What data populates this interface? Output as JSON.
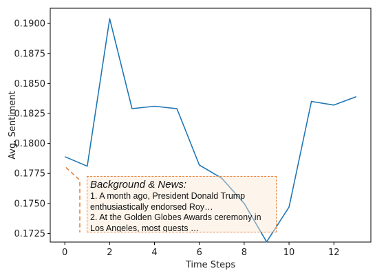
{
  "chart_data": {
    "type": "line",
    "title": "",
    "xlabel": "Time Steps",
    "ylabel": "Avg. Sentiment",
    "xlim": [
      -0.65,
      13.65
    ],
    "ylim": [
      0.17178,
      0.19127
    ],
    "xticks": [
      0,
      2,
      4,
      6,
      8,
      10,
      12
    ],
    "yticks": [
      0.1725,
      0.175,
      0.1775,
      0.18,
      0.1825,
      0.185,
      0.1875,
      0.19
    ],
    "ytick_labels": [
      "0.1725",
      "0.1750",
      "0.1775",
      "0.1800",
      "0.1825",
      "0.1850",
      "0.1875",
      "0.1900"
    ],
    "grid": false,
    "series": [
      {
        "color": "#1F77B4",
        "x": [
          0,
          1,
          2,
          3,
          4,
          5,
          6,
          7,
          8,
          9,
          10,
          11,
          12,
          13
        ],
        "y": [
          0.1789,
          0.1781,
          0.1904,
          0.1829,
          0.1831,
          0.1829,
          0.1782,
          0.1771,
          0.175,
          0.1718,
          0.1747,
          0.1835,
          0.1832,
          0.1839
        ]
      }
    ],
    "annotation": {
      "title": "Background & News",
      "title_suffix": ":",
      "lines": [
        "1. A month ago, President Donald Trump",
        "enthusiastically endorsed Roy…",
        "2. At the Golden Globes Awards ceremony in",
        "Los Angeles, most guests …"
      ],
      "border_color": "#E8823A",
      "fill_color": "#FAE6D2",
      "anchor": {
        "x": 0.05,
        "y": 0.178
      }
    }
  }
}
